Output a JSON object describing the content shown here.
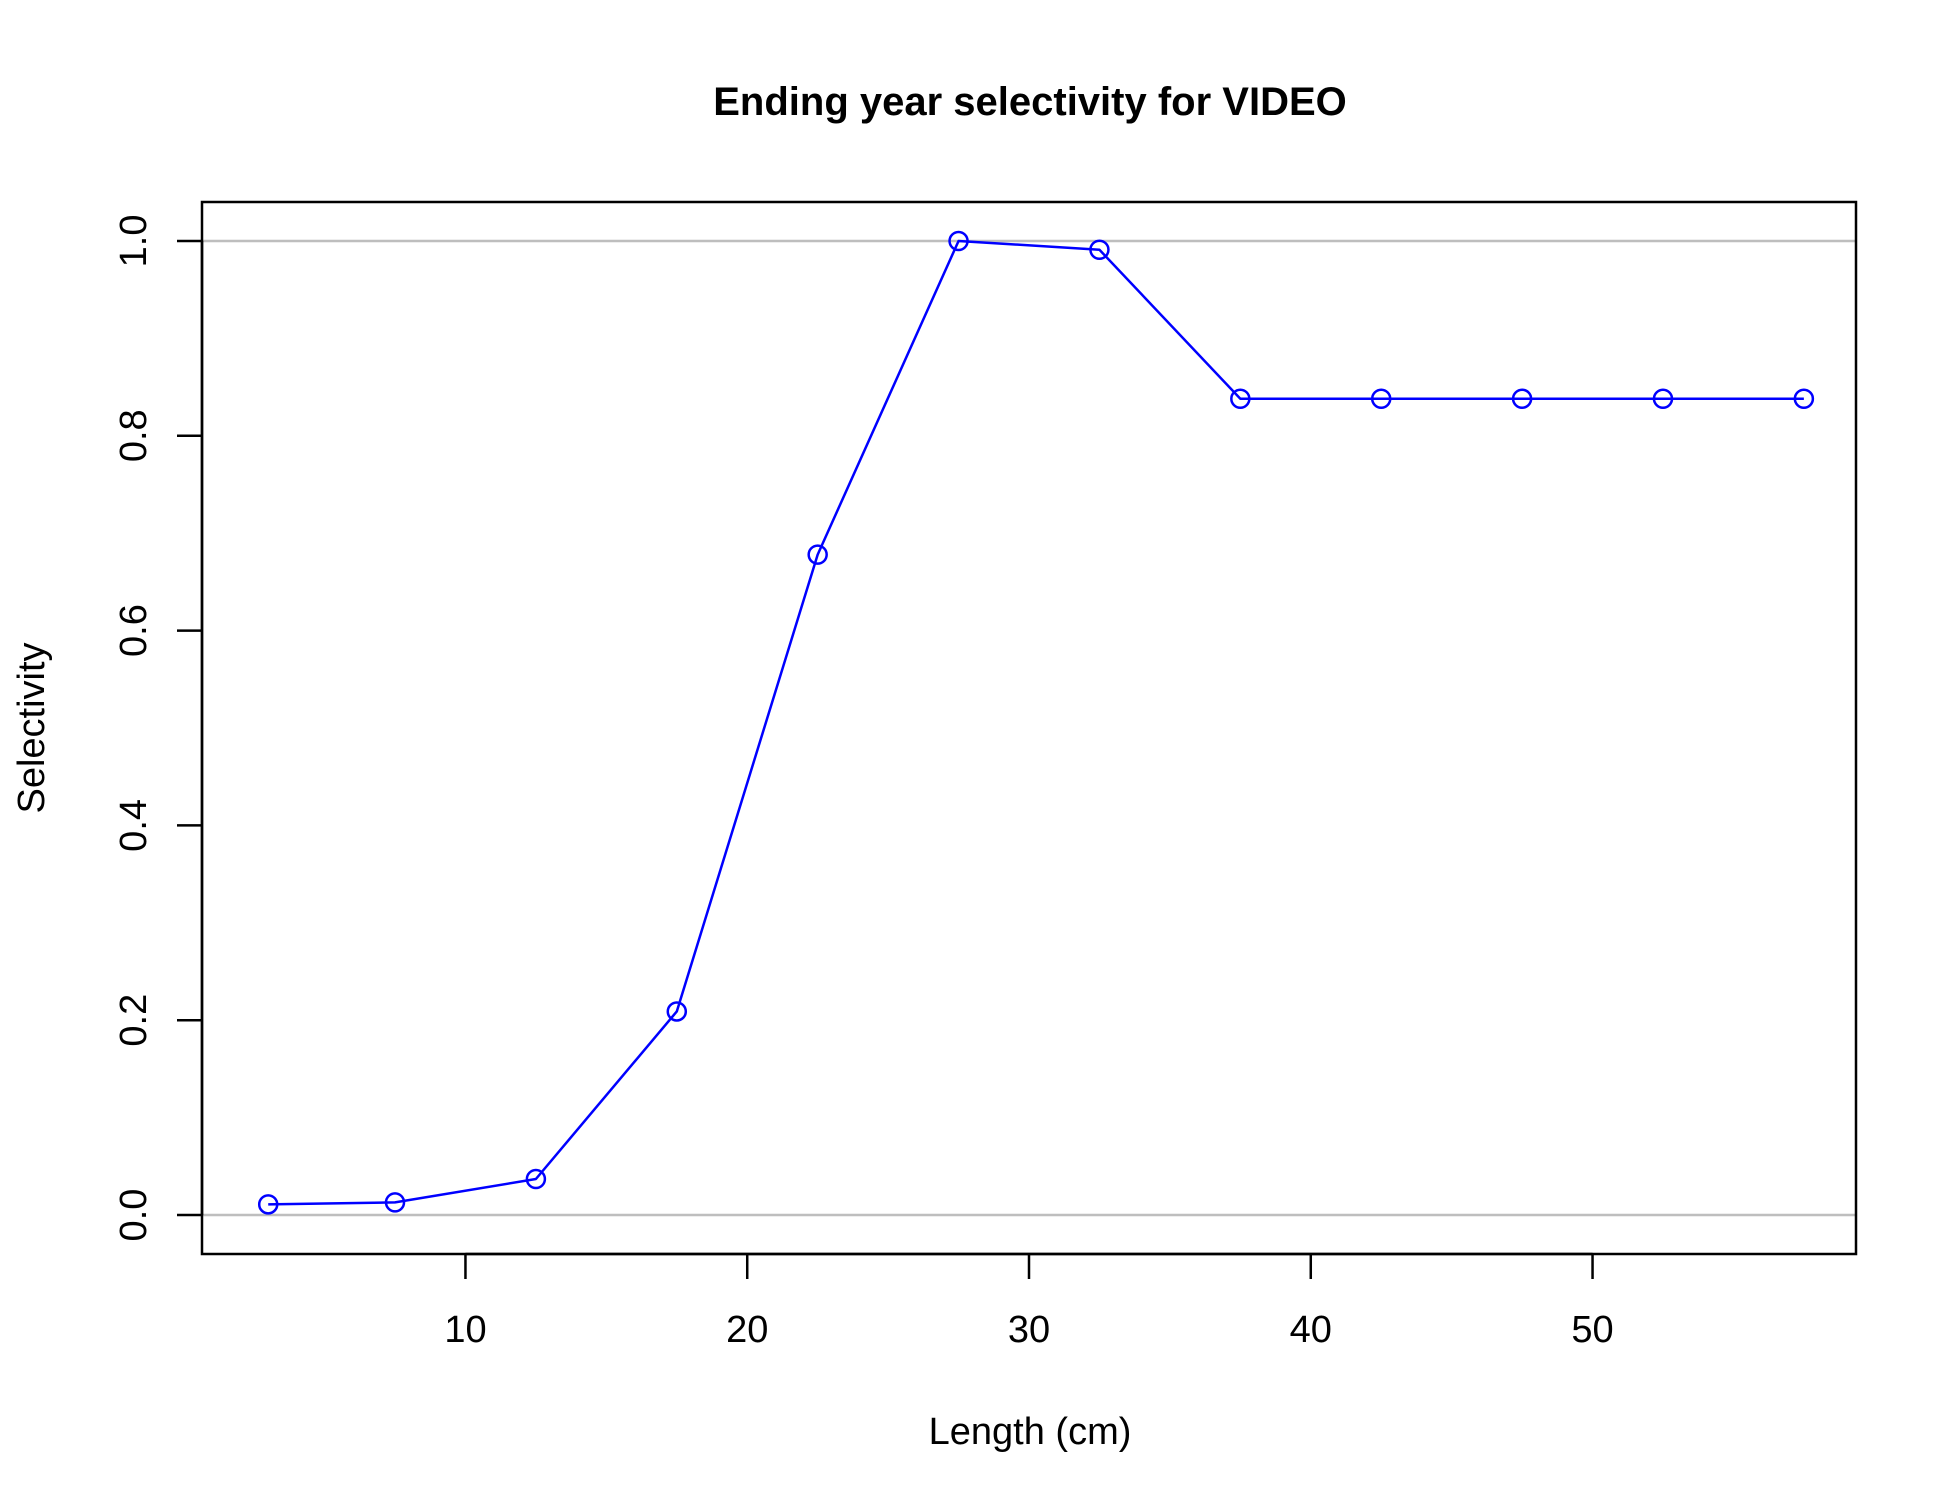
{
  "chart_data": {
    "type": "line",
    "title": "Ending year selectivity for VIDEO",
    "xlabel": "Length (cm)",
    "ylabel": "Selectivity",
    "xlim": [
      0.65,
      59.35
    ],
    "ylim": [
      -0.04,
      1.04
    ],
    "x_ticks": [
      10,
      20,
      30,
      40,
      50
    ],
    "y_ticks": [
      0.0,
      0.2,
      0.4,
      0.6,
      0.8,
      1.0
    ],
    "x_tick_labels": [
      "10",
      "20",
      "30",
      "40",
      "50"
    ],
    "y_tick_labels": [
      "0.0",
      "0.2",
      "0.4",
      "0.6",
      "0.8",
      "1.0"
    ],
    "reference_lines_y": [
      0,
      1
    ],
    "grid": false,
    "series": [
      {
        "color": "#0000ff",
        "marker": "open-circle",
        "x": [
          3,
          7.5,
          12.5,
          17.5,
          22.5,
          27.5,
          32.5,
          37.5,
          42.5,
          47.5,
          52.5,
          57.5
        ],
        "y": [
          0.011,
          0.013,
          0.037,
          0.209,
          0.678,
          1.0,
          0.991,
          0.838,
          0.838,
          0.838,
          0.838,
          0.838
        ]
      }
    ],
    "colors": {
      "series": "#0000ff",
      "reference_line": "#bebebe",
      "axis": "#000000"
    }
  }
}
